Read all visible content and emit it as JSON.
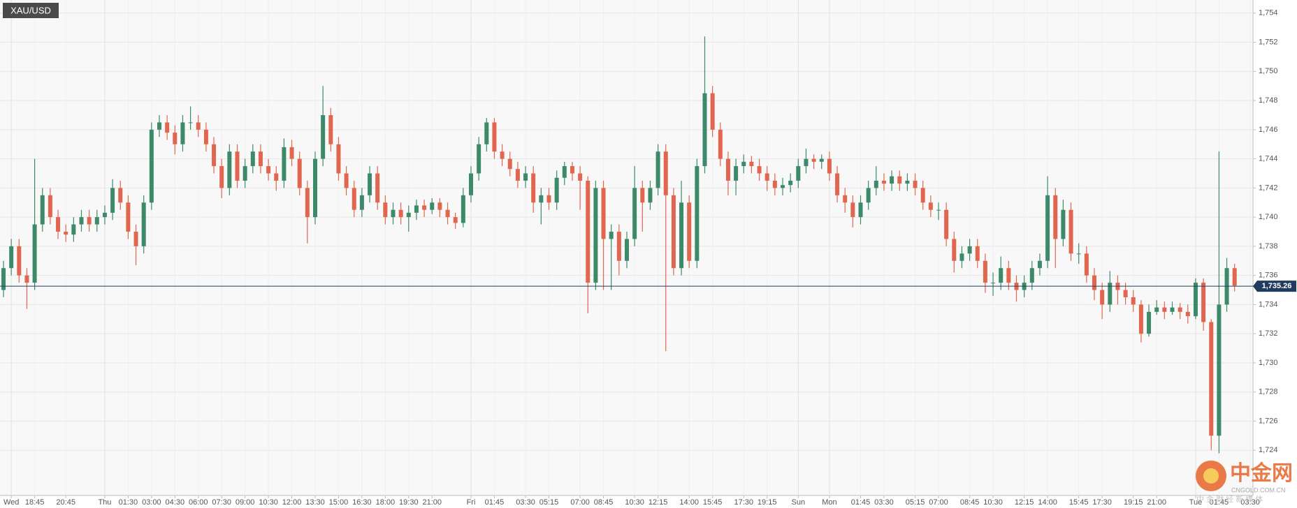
{
  "chart_data": {
    "type": "candlestick",
    "symbol": "XAU/USD",
    "categories": [
      null,
      "Wed",
      null,
      null,
      "18:45",
      null,
      null,
      null,
      "20:45",
      null,
      null,
      null,
      null,
      "Thu",
      null,
      null,
      "01:30",
      null,
      null,
      "03:00",
      null,
      null,
      "04:30",
      null,
      null,
      "06:00",
      null,
      null,
      "07:30",
      null,
      null,
      "09:00",
      null,
      null,
      "10:30",
      null,
      null,
      "12:00",
      null,
      null,
      "13:30",
      null,
      null,
      "15:00",
      null,
      null,
      "16:30",
      null,
      null,
      "18:00",
      null,
      null,
      "19:30",
      null,
      null,
      "21:00",
      null,
      null,
      null,
      null,
      "Fri",
      null,
      null,
      "01:45",
      null,
      null,
      null,
      "03:30",
      null,
      null,
      "05:15",
      null,
      null,
      null,
      "07:00",
      null,
      null,
      "08:45",
      null,
      null,
      null,
      "10:30",
      null,
      null,
      "12:15",
      null,
      null,
      null,
      "14:00",
      null,
      null,
      "15:45",
      null,
      null,
      null,
      "17:30",
      null,
      null,
      "19:15",
      null,
      null,
      null,
      "Sun",
      null,
      null,
      null,
      "Mon",
      null,
      null,
      null,
      "01:45",
      null,
      null,
      "03:30",
      null,
      null,
      null,
      "05:15",
      null,
      null,
      "07:00",
      null,
      null,
      null,
      "08:45",
      null,
      null,
      "10:30",
      null,
      null,
      null,
      "12:15",
      null,
      null,
      "14:00",
      null,
      null,
      null,
      "15:45",
      null,
      null,
      "17:30",
      null,
      null,
      null,
      "19:15",
      null,
      null,
      "21:00",
      null,
      null,
      null,
      null,
      "Tue",
      null,
      null,
      "01:45",
      null,
      null,
      null,
      "03:30"
    ],
    "open": [
      1735,
      1736.5,
      1738,
      1736,
      1735.5,
      1739.5,
      1741.5,
      1740,
      1739,
      1738.8,
      1739.5,
      1740,
      1739.5,
      1740,
      1740.3,
      1742,
      1741,
      1739,
      1738,
      1741,
      1746,
      1746.5,
      1745.8,
      1745,
      1746.5,
      1746.5,
      1746,
      1745,
      1743.5,
      1742,
      1744.5,
      1742.5,
      1743.5,
      1744.5,
      1743.5,
      1743,
      1742.5,
      1744.8,
      1744,
      1742,
      1740,
      1744,
      1747,
      1745,
      1743,
      1742,
      1740.5,
      1741.5,
      1743,
      1741,
      1740,
      1740.5,
      1740,
      1740.3,
      1740.8,
      1740.5,
      1741,
      1740.5,
      1740,
      1739.6,
      1741.5,
      1743,
      1745,
      1746.5,
      1744.5,
      1744,
      1743.3,
      1742.5,
      1743,
      1741,
      1741.5,
      1741,
      1742.7,
      1743.5,
      1743,
      1742.5,
      1735.5,
      1742,
      1738.5,
      1739,
      1737,
      1738.5,
      1742,
      1741,
      1742,
      1744.5,
      1741.5,
      1736.5,
      1741,
      1737,
      1743.5,
      1748.5,
      1746,
      1744,
      1742.5,
      1743.5,
      1743.8,
      1743.5,
      1743,
      1742.5,
      1742,
      1742.2,
      1742.5,
      1743.5,
      1744,
      1743.8,
      1744,
      1743,
      1741.5,
      1741,
      1740,
      1741,
      1742,
      1742.5,
      1742.3,
      1742.8,
      1742.3,
      1742.5,
      1742,
      1741,
      1740.5,
      1740.5,
      1738.5,
      1737,
      1737.5,
      1738,
      1737,
      1735.5,
      1735.5,
      1736.5,
      1735.5,
      1735,
      1735.5,
      1736.5,
      1737,
      1741.5,
      1738.5,
      1740.5,
      1737.5,
      1737.5,
      1736,
      1735,
      1734,
      1735.5,
      1735,
      1734.5,
      1734,
      1732,
      1733.5,
      1733.8,
      1733.5,
      1733.8,
      1733.5,
      1733.2,
      1735.5,
      1732.8,
      1725,
      1734,
      1736.5,
      null,
      null
    ],
    "high": [
      1737,
      1738.5,
      1738.5,
      1736.5,
      1744,
      1742,
      1742,
      1740.5,
      1739.5,
      1740,
      1740.5,
      1740.5,
      1740.5,
      1740.8,
      1742.6,
      1742.5,
      1741.5,
      1739.5,
      1741.5,
      1746.5,
      1747,
      1747,
      1746.3,
      1747,
      1747.6,
      1747,
      1746.5,
      1745.5,
      1744,
      1745,
      1745,
      1744,
      1745,
      1745,
      1744,
      1743.5,
      1745.4,
      1745.3,
      1744.5,
      1742.5,
      1744.5,
      1749,
      1747.5,
      1745.5,
      1743.5,
      1742.5,
      1742,
      1743.5,
      1743.5,
      1741.5,
      1741,
      1741,
      1740.8,
      1741.2,
      1741.2,
      1741.3,
      1741.3,
      1741,
      1740.3,
      1742,
      1743.5,
      1745.5,
      1746.8,
      1746.8,
      1745,
      1744.5,
      1743.8,
      1743.5,
      1743.5,
      1742,
      1742,
      1743.2,
      1743.8,
      1743.8,
      1743.5,
      1742.8,
      1742.5,
      1742.5,
      1739.5,
      1739.5,
      1739,
      1743.5,
      1742.5,
      1742.5,
      1745,
      1745,
      1742,
      1742.5,
      1741.5,
      1744,
      1752.4,
      1749,
      1746.5,
      1744.5,
      1744,
      1744.3,
      1744.2,
      1744,
      1743.5,
      1743,
      1742.7,
      1743,
      1744,
      1744.7,
      1744.3,
      1744.3,
      1744.5,
      1743.5,
      1742,
      1741.5,
      1741.5,
      1742.5,
      1743.5,
      1743,
      1743.2,
      1743.2,
      1743,
      1743,
      1742.5,
      1741.5,
      1741,
      1741,
      1739,
      1738,
      1738.5,
      1738.5,
      1737.5,
      1736.2,
      1737.3,
      1737,
      1736,
      1736,
      1737,
      1737.5,
      1742.8,
      1742,
      1741.2,
      1741,
      1738.2,
      1738,
      1736.5,
      1735.5,
      1736.3,
      1736,
      1735.5,
      1735,
      1734.3,
      1734,
      1734.3,
      1734.2,
      1734.2,
      1734.1,
      1734,
      1735.8,
      1735.8,
      1733,
      1744.5,
      1737.2,
      1736.8,
      null,
      null
    ],
    "low": [
      1734.5,
      1736,
      1735.5,
      1733.7,
      1735,
      1739,
      1739.5,
      1738.5,
      1738.3,
      1738.3,
      1739,
      1739,
      1739,
      1739.5,
      1739.8,
      1740.5,
      1738.5,
      1736.7,
      1737.5,
      1740.5,
      1745.5,
      1745.3,
      1744.3,
      1744.5,
      1746,
      1745.5,
      1744.5,
      1743,
      1741.3,
      1741.5,
      1742,
      1742,
      1743,
      1743,
      1742.5,
      1741.8,
      1742,
      1743.5,
      1741.5,
      1738.2,
      1739.5,
      1743.5,
      1744.5,
      1742.5,
      1741.5,
      1740,
      1740,
      1741,
      1740.5,
      1739.5,
      1739.5,
      1739.5,
      1739,
      1739.8,
      1740,
      1740.2,
      1740,
      1739.5,
      1739.2,
      1739.3,
      1741,
      1742.5,
      1744.5,
      1744,
      1743.5,
      1742.8,
      1742,
      1742,
      1740.3,
      1739.5,
      1740.5,
      1740.5,
      1742.2,
      1742.5,
      1740.5,
      1733.4,
      1735,
      1735,
      1735,
      1736,
      1736.5,
      1738,
      1739,
      1740.5,
      1741.5,
      1730.8,
      1736,
      1736,
      1736.5,
      1736.5,
      1743,
      1745.5,
      1743.5,
      1741.5,
      1741.5,
      1743,
      1743,
      1742.5,
      1741.8,
      1741.5,
      1741.5,
      1741.7,
      1742,
      1743,
      1743.3,
      1743.3,
      1742.5,
      1741,
      1740.3,
      1739.3,
      1739.5,
      1740.5,
      1741.5,
      1741.8,
      1741.8,
      1741.8,
      1741.8,
      1741.5,
      1740.5,
      1740,
      1739.8,
      1738,
      1736.2,
      1736.5,
      1737,
      1736.5,
      1734.8,
      1734.6,
      1735,
      1735,
      1734.2,
      1734.5,
      1735,
      1736,
      1736.5,
      1736.5,
      1738,
      1737,
      1736.8,
      1735.5,
      1734.3,
      1733,
      1733.5,
      1734,
      1734,
      1733.5,
      1731.4,
      1731.8,
      1733.3,
      1733,
      1733.3,
      1733,
      1732.7,
      1733,
      1732.2,
      1724,
      1723.8,
      1733.5,
      1734.9,
      null,
      null
    ],
    "close": [
      1736.5,
      1738,
      1736,
      1735.5,
      1739.5,
      1741.5,
      1740,
      1739,
      1738.8,
      1739.5,
      1740,
      1739.5,
      1740,
      1740.3,
      1742,
      1741,
      1739,
      1738,
      1741,
      1746,
      1746.5,
      1745.8,
      1745,
      1746.5,
      1746.5,
      1746,
      1745,
      1743.5,
      1742,
      1744.5,
      1742.5,
      1743.5,
      1744.5,
      1743.5,
      1743,
      1742.5,
      1744.8,
      1744,
      1742,
      1740,
      1744,
      1747,
      1745,
      1743,
      1742,
      1740.5,
      1741.5,
      1743,
      1741,
      1740,
      1740.5,
      1740,
      1740.3,
      1740.8,
      1740.5,
      1741,
      1740.5,
      1740,
      1739.6,
      1741.5,
      1743,
      1745,
      1746.5,
      1744.5,
      1744,
      1743.3,
      1742.5,
      1743,
      1741,
      1741.5,
      1741,
      1742.7,
      1743.5,
      1743,
      1742.5,
      1735.5,
      1742,
      1738.5,
      1739,
      1737,
      1738.5,
      1742,
      1741,
      1742,
      1744.5,
      1741.5,
      1736.5,
      1741,
      1737,
      1743.5,
      1748.5,
      1746,
      1744,
      1742.5,
      1743.5,
      1743.8,
      1743.5,
      1743,
      1742.5,
      1742,
      1742.2,
      1742.5,
      1743.5,
      1744,
      1743.8,
      1744,
      1743,
      1741.5,
      1741,
      1740,
      1741,
      1742,
      1742.5,
      1742.3,
      1742.8,
      1742.3,
      1742.5,
      1742,
      1741,
      1740.5,
      1740.5,
      1738.5,
      1737,
      1737.5,
      1738,
      1737,
      1735.5,
      1735.5,
      1736.5,
      1735.5,
      1735,
      1735.5,
      1736.5,
      1737,
      1741.5,
      1738.5,
      1740.5,
      1737.5,
      1737.5,
      1736,
      1735,
      1734,
      1735.5,
      1735,
      1734.5,
      1734,
      1732,
      1733.5,
      1733.8,
      1733.5,
      1733.8,
      1733.5,
      1733.2,
      1735.5,
      1732.8,
      1725,
      1734,
      1736.5,
      1735.3,
      null,
      null
    ],
    "up_color": "#3d8a6b",
    "down_color": "#e06650",
    "ylim": [
      1720.9,
      1754.9
    ],
    "yticks": [
      {
        "value": 1724,
        "label": "1,724"
      },
      {
        "value": 1726,
        "label": "1,726"
      },
      {
        "value": 1728,
        "label": "1,728"
      },
      {
        "value": 1730,
        "label": "1,730"
      },
      {
        "value": 1732,
        "label": "1,732"
      },
      {
        "value": 1734,
        "label": "1,734"
      },
      {
        "value": 1736,
        "label": "1,736"
      },
      {
        "value": 1738,
        "label": "1,738"
      },
      {
        "value": 1740,
        "label": "1,740"
      },
      {
        "value": 1742,
        "label": "1,742"
      },
      {
        "value": 1744,
        "label": "1,744"
      },
      {
        "value": 1746,
        "label": "1,746"
      },
      {
        "value": 1748,
        "label": "1,748"
      },
      {
        "value": 1750,
        "label": "1,750"
      },
      {
        "value": 1752,
        "label": "1,752"
      },
      {
        "value": 1754,
        "label": "1,754"
      }
    ],
    "last_price": {
      "value": 1735.26,
      "label": "1,735.26"
    },
    "grid": true,
    "watermark": {
      "brand": "中金网",
      "site": "CNGOLD.COM.CN",
      "slogan": "中 金 财 经 新 媒 体"
    }
  }
}
